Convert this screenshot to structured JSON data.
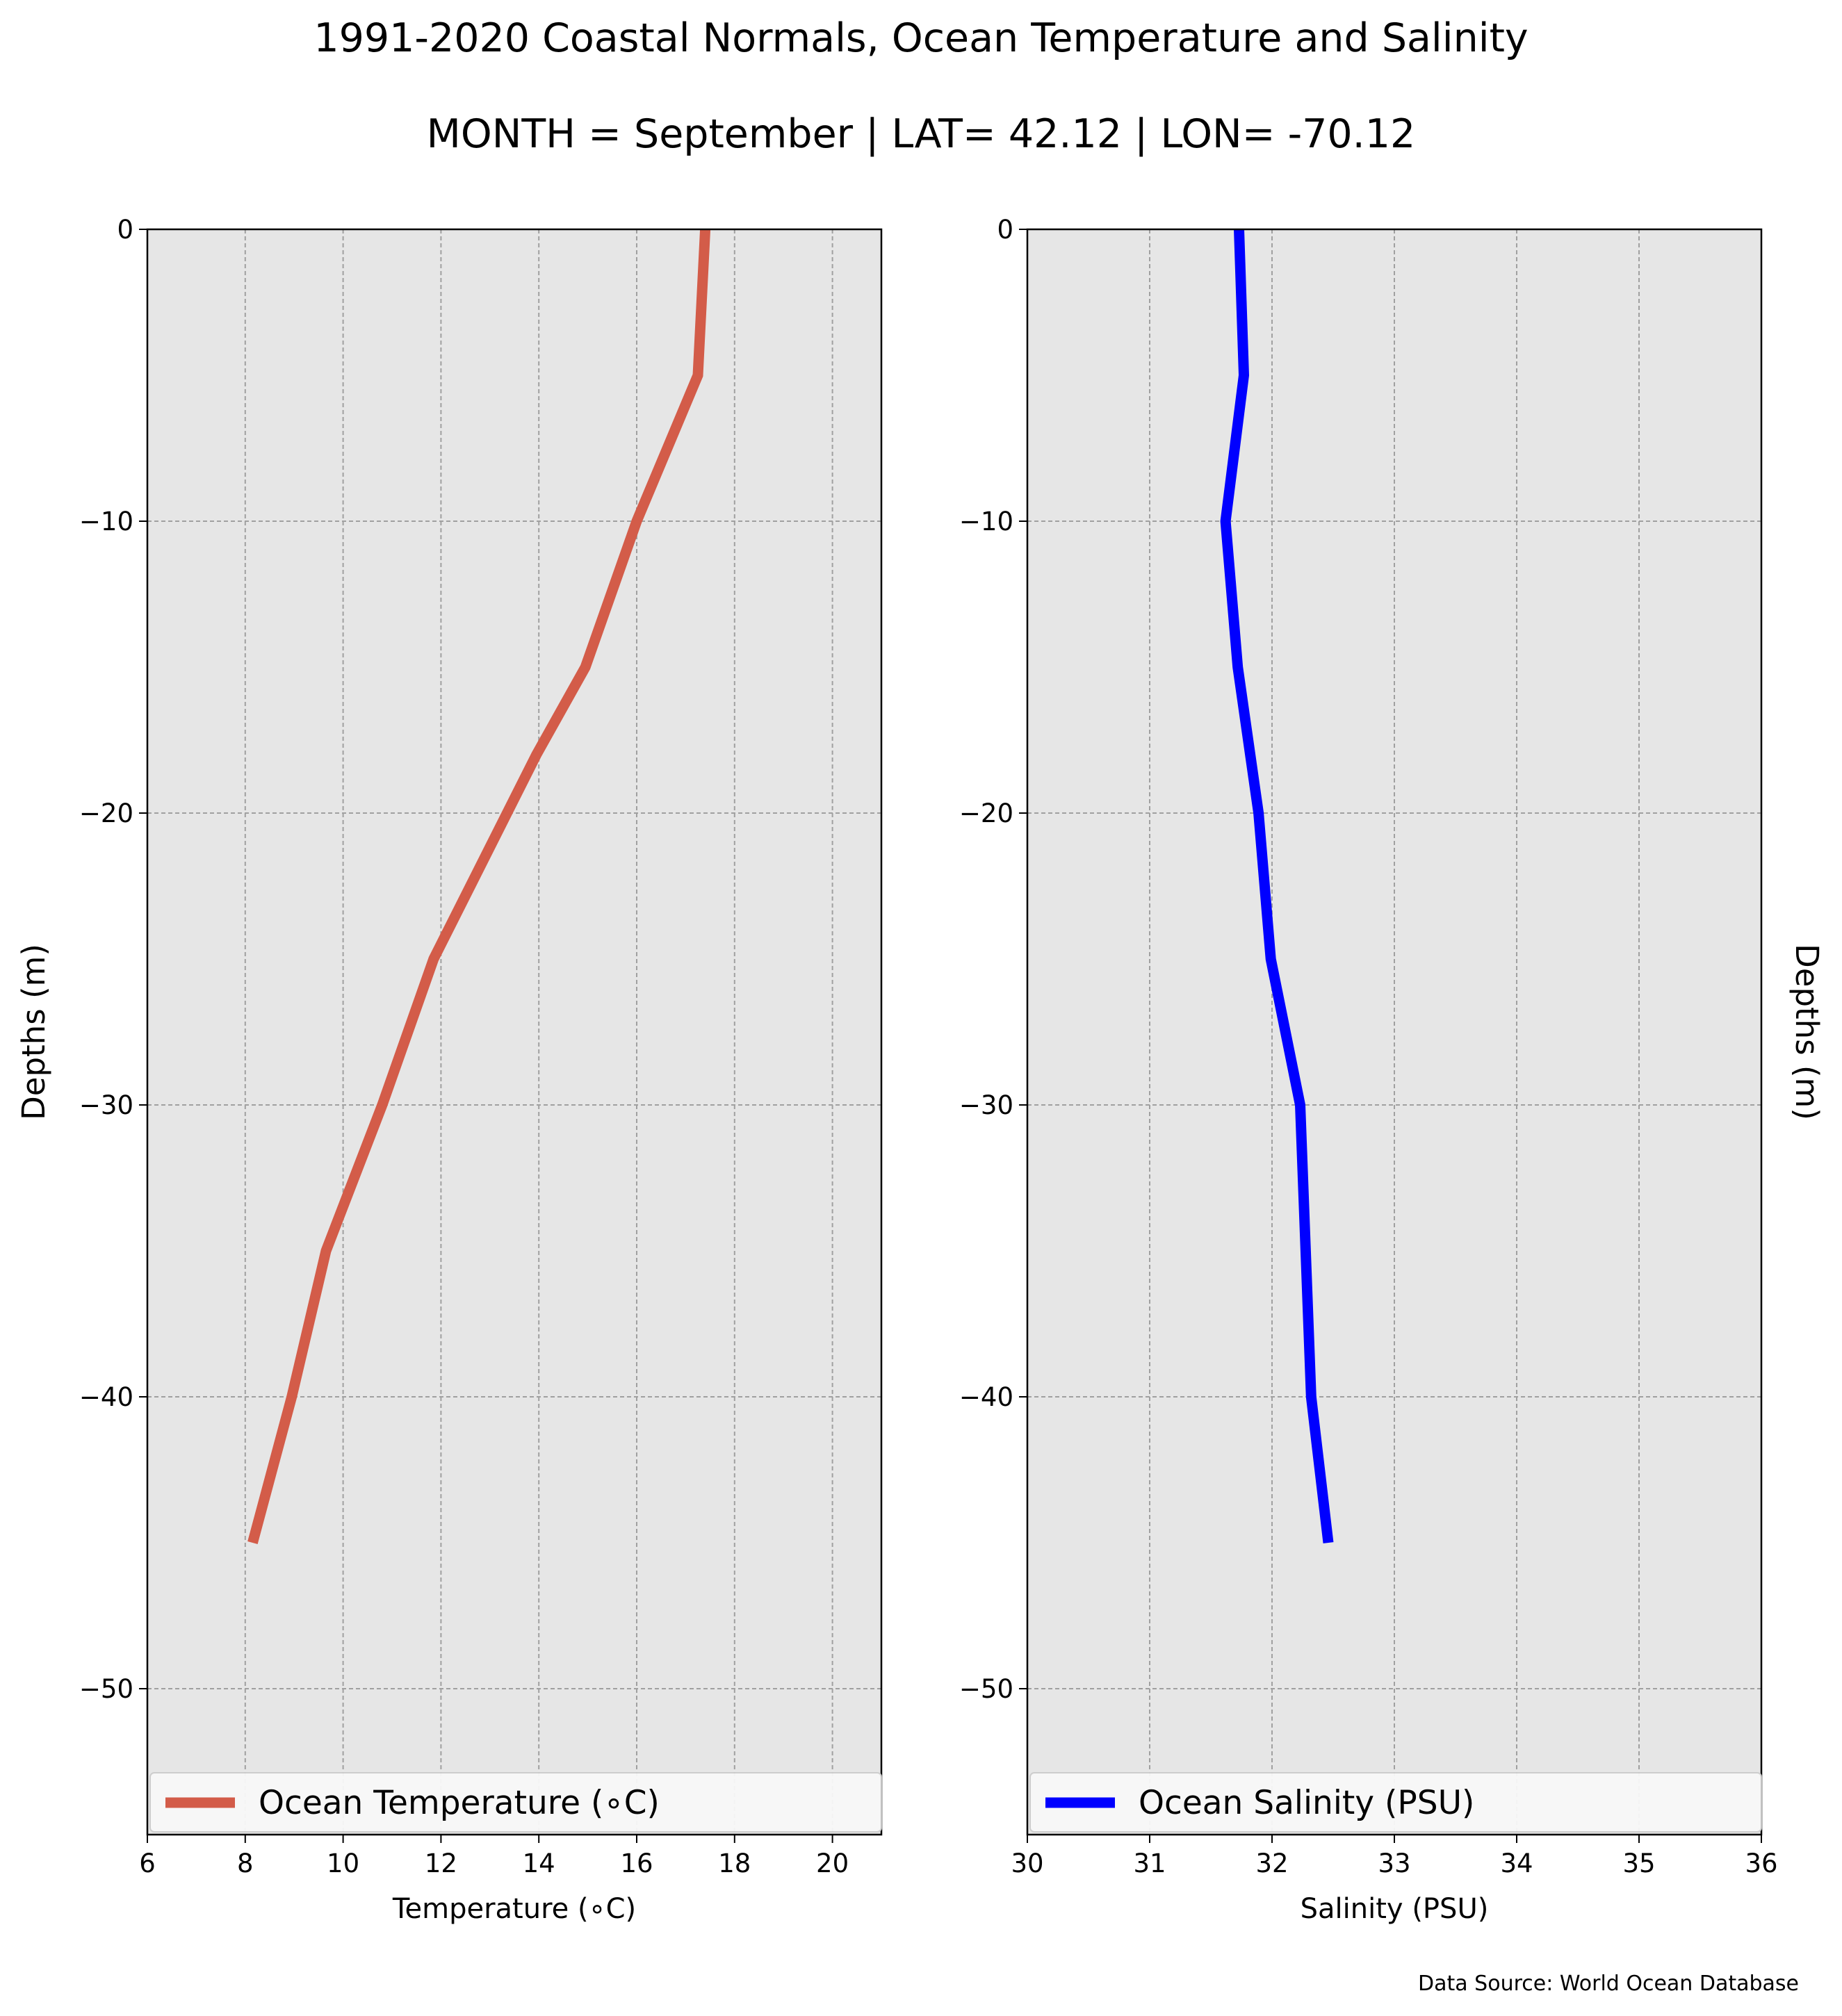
{
  "title": "1991-2020 Coastal Normals, Ocean Temperature and Salinity",
  "subtitle": "MONTH = September | LAT= 42.12 | LON= -70.12",
  "source": "Data Source: World Ocean Database",
  "chart_data": [
    {
      "type": "line",
      "xlabel": "Temperature (∘C)",
      "ylabel": "Depths (m)",
      "xlim": [
        6,
        21
      ],
      "ylim": [
        -55,
        0
      ],
      "xticks": [
        "6",
        "8",
        "10",
        "12",
        "14",
        "16",
        "18",
        "20"
      ],
      "yticks": [
        "0",
        "−10",
        "−20",
        "−30",
        "−40",
        "−50"
      ],
      "grid": true,
      "legend_position": "bottom",
      "series": [
        {
          "name": "Ocean Temperature (∘C)",
          "color": "#d35c49",
          "x": [
            17.4,
            17.25,
            16.0,
            14.95,
            13.95,
            11.85,
            10.8,
            9.65,
            8.95,
            8.15
          ],
          "y": [
            0,
            -5,
            -10,
            -15,
            -18,
            -25,
            -30,
            -35,
            -40,
            -45
          ]
        }
      ]
    },
    {
      "type": "line",
      "xlabel": "Salinity (PSU)",
      "ylabel": "Depths (m)",
      "xlim": [
        30,
        36
      ],
      "ylim": [
        -55,
        0
      ],
      "xticks": [
        "30",
        "31",
        "32",
        "33",
        "34",
        "35",
        "36"
      ],
      "yticks": [
        "0",
        "−10",
        "−20",
        "−30",
        "−40",
        "−50"
      ],
      "grid": true,
      "legend_position": "bottom",
      "series": [
        {
          "name": "Ocean Salinity (PSU)",
          "color": "#0000ff",
          "x": [
            31.73,
            31.77,
            31.62,
            31.72,
            31.89,
            31.99,
            32.23,
            32.32,
            32.46
          ],
          "y": [
            0,
            -5,
            -10,
            -15,
            -20,
            -25,
            -30,
            -40,
            -45
          ]
        }
      ]
    }
  ]
}
